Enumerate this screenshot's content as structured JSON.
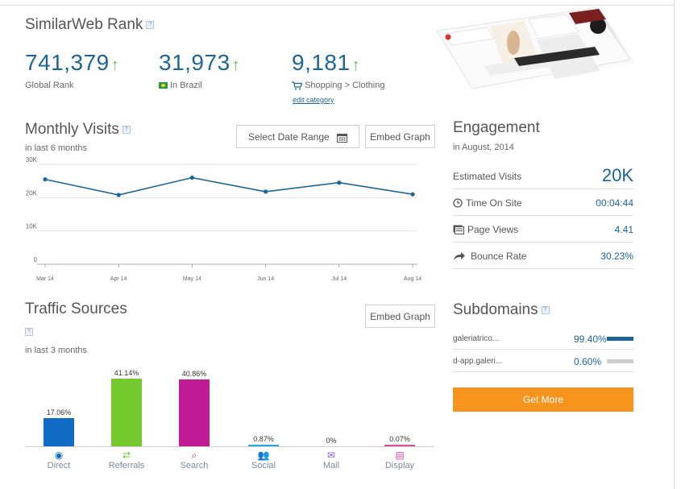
{
  "rank": {
    "title": "SimilarWeb Rank",
    "help": "?",
    "items": [
      {
        "value": "741,379",
        "arrow": "↑",
        "label": "Global Rank"
      },
      {
        "value": "31,973",
        "arrow": "↑",
        "label": "In Brazil"
      },
      {
        "value": "9,181",
        "arrow": "↑",
        "label": "Shopping > Clothing",
        "link": "edit category"
      }
    ]
  },
  "monthly": {
    "title": "Monthly Visits",
    "subtitle": "in last 6 months",
    "date_range_label": "Select Date Range",
    "embed_label": "Embed Graph"
  },
  "engagement": {
    "title": "Engagement",
    "subtitle": "in August, 2014",
    "rows": [
      {
        "label": "Estimated Visits",
        "value": "20K"
      },
      {
        "label": "Time On Site",
        "value": "00:04:44",
        "icon": "clock-icon"
      },
      {
        "label": "Page Views",
        "value": "4.41",
        "icon": "pages-icon"
      },
      {
        "label": "Bounce Rate",
        "value": "30.23%",
        "icon": "bounce-arrow-icon"
      }
    ]
  },
  "traffic": {
    "title": "Traffic Sources",
    "subtitle": "in last 3 months",
    "embed_label": "Embed Graph"
  },
  "subdomains": {
    "title": "Subdomains",
    "rows": [
      {
        "name": "galeriatrico...",
        "pct": "99.40%",
        "share": 0.994,
        "color": "#1c6597"
      },
      {
        "name": "d-app.galeri...",
        "pct": "0.60%",
        "share": 0.006,
        "color": "#cccccc"
      }
    ],
    "button": "Get More"
  },
  "colors": {
    "accent": "#1c6597",
    "orange": "#f7941d",
    "green_up": "#5cb85c"
  },
  "chart_data": [
    {
      "type": "line",
      "categories": [
        "Mar 14",
        "Apr 14",
        "May 14",
        "Jun 14",
        "Jul 14",
        "Aug 14"
      ],
      "values": [
        25500,
        20800,
        26000,
        21800,
        24500,
        21000
      ],
      "yticks": [
        "0",
        "10K",
        "20K",
        "30K"
      ],
      "ylim": [
        0,
        30000
      ],
      "grid": true,
      "color": "#1c6597"
    },
    {
      "type": "bar",
      "categories": [
        "Direct",
        "Referrals",
        "Search",
        "Social",
        "Mail",
        "Display"
      ],
      "values": [
        17.06,
        41.14,
        40.86,
        0.87,
        0,
        0.07
      ],
      "labels": [
        "17.06%",
        "41.14%",
        "40.86%",
        "0.87%",
        "0%",
        "0.07%"
      ],
      "colors": [
        "#0f6bc4",
        "#73c92d",
        "#c01b94",
        "#2aa6e0",
        "#8a5cc7",
        "#e24ba0"
      ],
      "icons": [
        "target-icon",
        "arrows-icon",
        "search-icon",
        "people-icon",
        "mail-icon",
        "display-icon"
      ]
    }
  ]
}
